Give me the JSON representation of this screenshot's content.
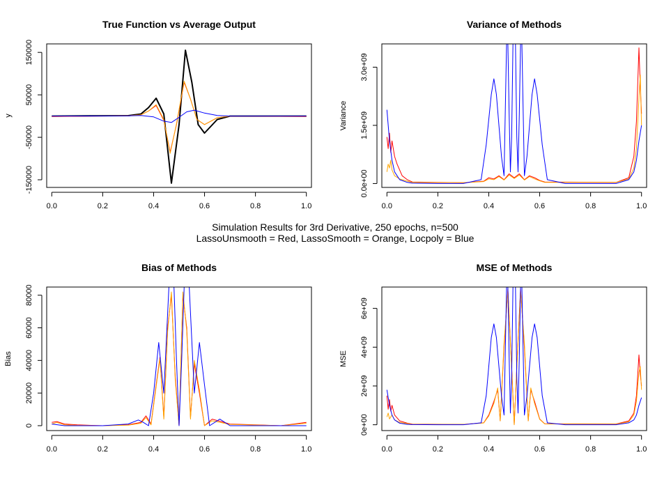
{
  "figure": {
    "caption_line1": "Simulation Results for 3rd Derivative, 250 epochs, n=500",
    "caption_line2": "LassoUnsmooth = Red, LassoSmooth = Orange, Locpoly = Blue"
  },
  "colors": {
    "true": "#000000",
    "lasso_unsmooth": "#ff0000",
    "lasso_smooth": "#ffa500",
    "locpoly": "#0000ff"
  },
  "chart_data": [
    {
      "type": "line",
      "title": "True Function vs Average Output",
      "xlabel": "",
      "ylabel": "y",
      "xlim": [
        -0.02,
        1.02
      ],
      "ylim": [
        -168000,
        170000
      ],
      "xticks": [
        0.0,
        0.2,
        0.4,
        0.6,
        0.8,
        1.0
      ],
      "xtick_labels": [
        "0.0",
        "0.2",
        "0.4",
        "0.6",
        "0.8",
        "1.0"
      ],
      "yticks": [
        -150000,
        -50000,
        50000,
        150000
      ],
      "ytick_labels": [
        "-150000",
        "-50000",
        "50000",
        "150000"
      ],
      "series": [
        {
          "color": "#000000",
          "width": 2,
          "x": [
            0,
            0.3,
            0.35,
            0.38,
            0.41,
            0.44,
            0.47,
            0.5,
            0.525,
            0.55,
            0.575,
            0.6,
            0.65,
            0.7,
            1.0
          ],
          "y": [
            0,
            1000,
            5000,
            20000,
            42000,
            5000,
            -158000,
            -20000,
            155000,
            80000,
            -20000,
            -40000,
            -8000,
            0,
            0
          ]
        },
        {
          "color": "#ff0000",
          "width": 1,
          "x": [
            0,
            0.3,
            0.35,
            0.38,
            0.41,
            0.44,
            0.465,
            0.49,
            0.52,
            0.545,
            0.57,
            0.6,
            0.65,
            0.7,
            1.0
          ],
          "y": [
            -1000,
            500,
            3000,
            12000,
            25000,
            -10000,
            -85000,
            -20000,
            80000,
            40000,
            -8000,
            -20000,
            -4000,
            0,
            -1000
          ]
        },
        {
          "color": "#ffa500",
          "width": 1,
          "x": [
            0,
            0.3,
            0.35,
            0.38,
            0.41,
            0.44,
            0.465,
            0.49,
            0.52,
            0.545,
            0.57,
            0.6,
            0.65,
            0.7,
            1.0
          ],
          "y": [
            0,
            500,
            3000,
            12000,
            27000,
            -8000,
            -88000,
            -18000,
            82000,
            40000,
            -8000,
            -20000,
            -4000,
            0,
            0
          ]
        },
        {
          "color": "#0000ff",
          "width": 1,
          "x": [
            0,
            0.3,
            0.35,
            0.4,
            0.44,
            0.47,
            0.5,
            0.53,
            0.56,
            0.6,
            0.65,
            0.7,
            1.0
          ],
          "y": [
            0,
            500,
            1500,
            -2000,
            -12000,
            -15000,
            -3000,
            10000,
            14000,
            7000,
            1500,
            0,
            0
          ]
        }
      ]
    },
    {
      "type": "line",
      "title": "Variance of Methods",
      "xlabel": "",
      "ylabel": "Variance",
      "xlim": [
        -0.02,
        1.02
      ],
      "ylim": [
        -100000000,
        3600000000
      ],
      "xticks": [
        0.0,
        0.2,
        0.4,
        0.6,
        0.8,
        1.0
      ],
      "xtick_labels": [
        "0.0",
        "0.2",
        "0.4",
        "0.6",
        "0.8",
        "1.0"
      ],
      "yticks": [
        0,
        1500000000,
        3000000000
      ],
      "ytick_labels": [
        "0.0e+00",
        "1.5e+09",
        "3.0e+09"
      ],
      "series": [
        {
          "color": "#ff0000",
          "width": 1,
          "x": [
            0,
            0.005,
            0.01,
            0.015,
            0.02,
            0.03,
            0.04,
            0.06,
            0.08,
            0.1,
            0.3,
            0.38,
            0.4,
            0.42,
            0.44,
            0.46,
            0.48,
            0.5,
            0.52,
            0.54,
            0.56,
            0.58,
            0.6,
            0.62,
            0.9,
            0.95,
            0.97,
            0.98,
            0.99,
            0.995,
            1.0
          ],
          "y": [
            1200000000,
            900000000,
            1300000000,
            800000000,
            1100000000,
            700000000,
            500000000,
            200000000,
            100000000,
            40000000,
            20000000,
            60000000,
            150000000,
            120000000,
            200000000,
            100000000,
            250000000,
            150000000,
            250000000,
            100000000,
            200000000,
            150000000,
            80000000,
            40000000,
            30000000,
            150000000,
            700000000,
            1600000000,
            3500000000,
            2500000000,
            1800000000
          ]
        },
        {
          "color": "#ffa500",
          "width": 1,
          "x": [
            0,
            0.005,
            0.01,
            0.015,
            0.02,
            0.03,
            0.05,
            0.08,
            0.1,
            0.3,
            0.38,
            0.4,
            0.42,
            0.44,
            0.46,
            0.48,
            0.5,
            0.52,
            0.54,
            0.56,
            0.58,
            0.6,
            0.62,
            0.9,
            0.95,
            0.97,
            0.98,
            0.99,
            0.995,
            1.0
          ],
          "y": [
            300000000,
            500000000,
            400000000,
            600000000,
            350000000,
            200000000,
            120000000,
            60000000,
            30000000,
            20000000,
            50000000,
            120000000,
            100000000,
            180000000,
            90000000,
            220000000,
            130000000,
            220000000,
            90000000,
            180000000,
            120000000,
            70000000,
            30000000,
            30000000,
            120000000,
            400000000,
            900000000,
            2200000000,
            2800000000,
            1500000000
          ]
        },
        {
          "color": "#0000ff",
          "width": 1,
          "x": [
            0,
            0.01,
            0.02,
            0.03,
            0.05,
            0.08,
            0.1,
            0.2,
            0.3,
            0.37,
            0.39,
            0.41,
            0.42,
            0.43,
            0.45,
            0.46,
            0.47,
            0.475,
            0.48,
            0.485,
            0.49,
            0.495,
            0.5,
            0.505,
            0.51,
            0.515,
            0.52,
            0.525,
            0.53,
            0.54,
            0.55,
            0.57,
            0.58,
            0.59,
            0.61,
            0.63,
            0.7,
            0.9,
            0.95,
            0.97,
            0.98,
            0.99,
            1.0
          ],
          "y": [
            1900000000,
            1100000000,
            600000000,
            300000000,
            100000000,
            30000000,
            10000000,
            0,
            0,
            100000000,
            1000000000,
            2300000000,
            2700000000,
            2300000000,
            700000000,
            200000000,
            3600000000,
            3600000000,
            1800000000,
            300000000,
            1200000000,
            3600000000,
            3600000000,
            3600000000,
            1200000000,
            300000000,
            1800000000,
            3600000000,
            3600000000,
            200000000,
            700000000,
            2300000000,
            2700000000,
            2300000000,
            1000000000,
            100000000,
            0,
            0,
            100000000,
            300000000,
            600000000,
            1100000000,
            1500000000
          ]
        }
      ]
    },
    {
      "type": "line",
      "title": "Bias of Methods",
      "xlabel": "",
      "ylabel": "Bias",
      "xlim": [
        -0.02,
        1.02
      ],
      "ylim": [
        -3000,
        85000
      ],
      "xticks": [
        0.0,
        0.2,
        0.4,
        0.6,
        0.8,
        1.0
      ],
      "xtick_labels": [
        "0.0",
        "0.2",
        "0.4",
        "0.6",
        "0.8",
        "1.0"
      ],
      "yticks": [
        0,
        20000,
        40000,
        60000,
        80000
      ],
      "ytick_labels": [
        "0",
        "20000",
        "40000",
        "60000",
        "80000"
      ],
      "series": [
        {
          "color": "#ff0000",
          "width": 1,
          "x": [
            0,
            0.02,
            0.05,
            0.1,
            0.2,
            0.3,
            0.35,
            0.37,
            0.39,
            0.41,
            0.425,
            0.44,
            0.455,
            0.47,
            0.485,
            0.5,
            0.515,
            0.53,
            0.545,
            0.56,
            0.58,
            0.6,
            0.63,
            0.7,
            0.9,
            1.0
          ],
          "y": [
            2000,
            2500,
            1000,
            500,
            0,
            500,
            2000,
            6000,
            1000,
            25000,
            42000,
            5000,
            60000,
            80000,
            30000,
            0,
            80000,
            60000,
            5000,
            38000,
            20000,
            0,
            4000,
            1000,
            0,
            2000
          ]
        },
        {
          "color": "#ffa500",
          "width": 1,
          "x": [
            0,
            0.02,
            0.05,
            0.1,
            0.2,
            0.3,
            0.35,
            0.37,
            0.39,
            0.41,
            0.425,
            0.44,
            0.455,
            0.47,
            0.485,
            0.5,
            0.515,
            0.53,
            0.545,
            0.56,
            0.58,
            0.6,
            0.63,
            0.7,
            0.9,
            1.0
          ],
          "y": [
            1000,
            2000,
            500,
            200,
            0,
            300,
            1500,
            5000,
            500,
            24000,
            41000,
            4000,
            58000,
            82000,
            28000,
            0,
            82000,
            58000,
            4000,
            40000,
            22000,
            0,
            3000,
            800,
            0,
            1500
          ]
        },
        {
          "color": "#0000ff",
          "width": 1,
          "x": [
            0,
            0.05,
            0.1,
            0.2,
            0.3,
            0.34,
            0.36,
            0.38,
            0.4,
            0.42,
            0.44,
            0.46,
            0.47,
            0.48,
            0.49,
            0.5,
            0.51,
            0.52,
            0.53,
            0.54,
            0.56,
            0.58,
            0.6,
            0.62,
            0.66,
            0.7,
            1.0
          ],
          "y": [
            1000,
            0,
            0,
            0,
            1000,
            3500,
            2000,
            0,
            20000,
            51000,
            20000,
            85000,
            85000,
            85000,
            40000,
            0,
            40000,
            85000,
            85000,
            85000,
            20000,
            51000,
            25000,
            0,
            4000,
            0,
            0
          ]
        }
      ]
    },
    {
      "type": "line",
      "title": "MSE of Methods",
      "xlabel": "",
      "ylabel": "MSE",
      "xlim": [
        -0.02,
        1.02
      ],
      "ylim": [
        -300000000,
        7100000000
      ],
      "xticks": [
        0.0,
        0.2,
        0.4,
        0.6,
        0.8,
        1.0
      ],
      "xtick_labels": [
        "0.0",
        "0.2",
        "0.4",
        "0.6",
        "0.8",
        "1.0"
      ],
      "yticks": [
        0,
        2000000000,
        4000000000,
        6000000000
      ],
      "ytick_labels": [
        "0e+00",
        "2e+09",
        "4e+09",
        "6e+09"
      ],
      "series": [
        {
          "color": "#ff0000",
          "width": 1,
          "x": [
            0,
            0.005,
            0.01,
            0.015,
            0.02,
            0.03,
            0.05,
            0.08,
            0.1,
            0.3,
            0.38,
            0.4,
            0.42,
            0.435,
            0.445,
            0.46,
            0.475,
            0.49,
            0.5,
            0.51,
            0.525,
            0.54,
            0.555,
            0.565,
            0.58,
            0.6,
            0.62,
            0.9,
            0.95,
            0.97,
            0.98,
            0.99,
            0.995,
            1.0
          ],
          "y": [
            1500000000,
            800000000,
            1300000000,
            700000000,
            1000000000,
            500000000,
            200000000,
            80000000,
            30000000,
            20000000,
            100000000,
            500000000,
            1200000000,
            1800000000,
            200000000,
            4000000000,
            7000000000,
            3000000000,
            0,
            3000000000,
            7000000000,
            4000000000,
            200000000,
            1800000000,
            1200000000,
            300000000,
            50000000,
            40000000,
            200000000,
            600000000,
            1500000000,
            3600000000,
            2600000000,
            2000000000
          ]
        },
        {
          "color": "#ffa500",
          "width": 1,
          "x": [
            0,
            0.005,
            0.01,
            0.02,
            0.03,
            0.05,
            0.08,
            0.1,
            0.3,
            0.38,
            0.4,
            0.42,
            0.435,
            0.445,
            0.46,
            0.475,
            0.49,
            0.5,
            0.51,
            0.525,
            0.54,
            0.555,
            0.565,
            0.58,
            0.6,
            0.62,
            0.9,
            0.95,
            0.97,
            0.98,
            0.99,
            0.995,
            1.0
          ],
          "y": [
            400000000,
            600000000,
            300000000,
            500000000,
            250000000,
            120000000,
            60000000,
            20000000,
            20000000,
            90000000,
            450000000,
            1100000000,
            1900000000,
            200000000,
            4200000000,
            6900000000,
            2900000000,
            0,
            2900000000,
            6900000000,
            4200000000,
            200000000,
            1900000000,
            1100000000,
            280000000,
            40000000,
            30000000,
            150000000,
            500000000,
            1200000000,
            2700000000,
            3000000000,
            1800000000
          ]
        },
        {
          "color": "#0000ff",
          "width": 1,
          "x": [
            0,
            0.01,
            0.02,
            0.03,
            0.05,
            0.08,
            0.1,
            0.2,
            0.3,
            0.37,
            0.39,
            0.41,
            0.42,
            0.43,
            0.45,
            0.46,
            0.47,
            0.475,
            0.48,
            0.485,
            0.49,
            0.495,
            0.5,
            0.505,
            0.51,
            0.515,
            0.52,
            0.525,
            0.53,
            0.54,
            0.55,
            0.57,
            0.58,
            0.59,
            0.61,
            0.63,
            0.7,
            0.9,
            0.95,
            0.97,
            0.98,
            0.99,
            1.0
          ],
          "y": [
            1800000000,
            1000000000,
            500000000,
            250000000,
            80000000,
            20000000,
            10000000,
            0,
            0,
            100000000,
            1500000000,
            4500000000,
            5200000000,
            4500000000,
            1500000000,
            500000000,
            7100000000,
            7100000000,
            3500000000,
            600000000,
            2500000000,
            7100000000,
            7100000000,
            7100000000,
            2500000000,
            600000000,
            3500000000,
            7100000000,
            7100000000,
            500000000,
            1500000000,
            4500000000,
            5200000000,
            4500000000,
            1500000000,
            100000000,
            0,
            0,
            100000000,
            250000000,
            500000000,
            1000000000,
            1400000000
          ]
        }
      ]
    }
  ]
}
